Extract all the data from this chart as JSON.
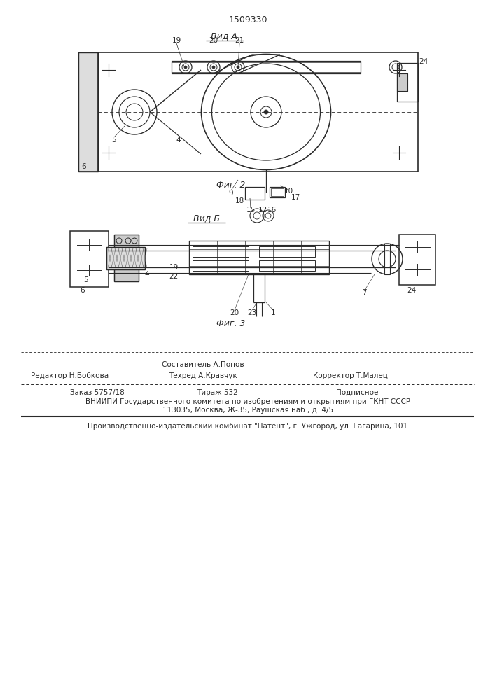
{
  "patent_number": "1509330",
  "fig2_title": "Вид А",
  "fig3_title": "Вид Б",
  "fig2_caption": "Фиг. 2",
  "fig3_caption": "Фиг. 3",
  "editor_line": "Редактор Н.Бобкова",
  "composer_line": "Составитель А.Попов",
  "techred_line": "Техред А.Кравчук",
  "corrector_line": "Корректор Т.Малец",
  "order_line": "Заказ 5757/18",
  "tirazh_line": "Тираж 532",
  "podpisnoe_line": "Подписное",
  "vnipi_line": "ВНИИПИ Государственного комитета по изобретениям и открытиям при ГКНТ СССР",
  "address_line": "113035, Москва, Ж-35, Раушская наб., д. 4/5",
  "publisher_line": "Производственно-издательский комбинат \"Патент\", г. Ужгород, ул. Гагарина, 101",
  "bg_color": "#ffffff",
  "line_color": "#2a2a2a"
}
